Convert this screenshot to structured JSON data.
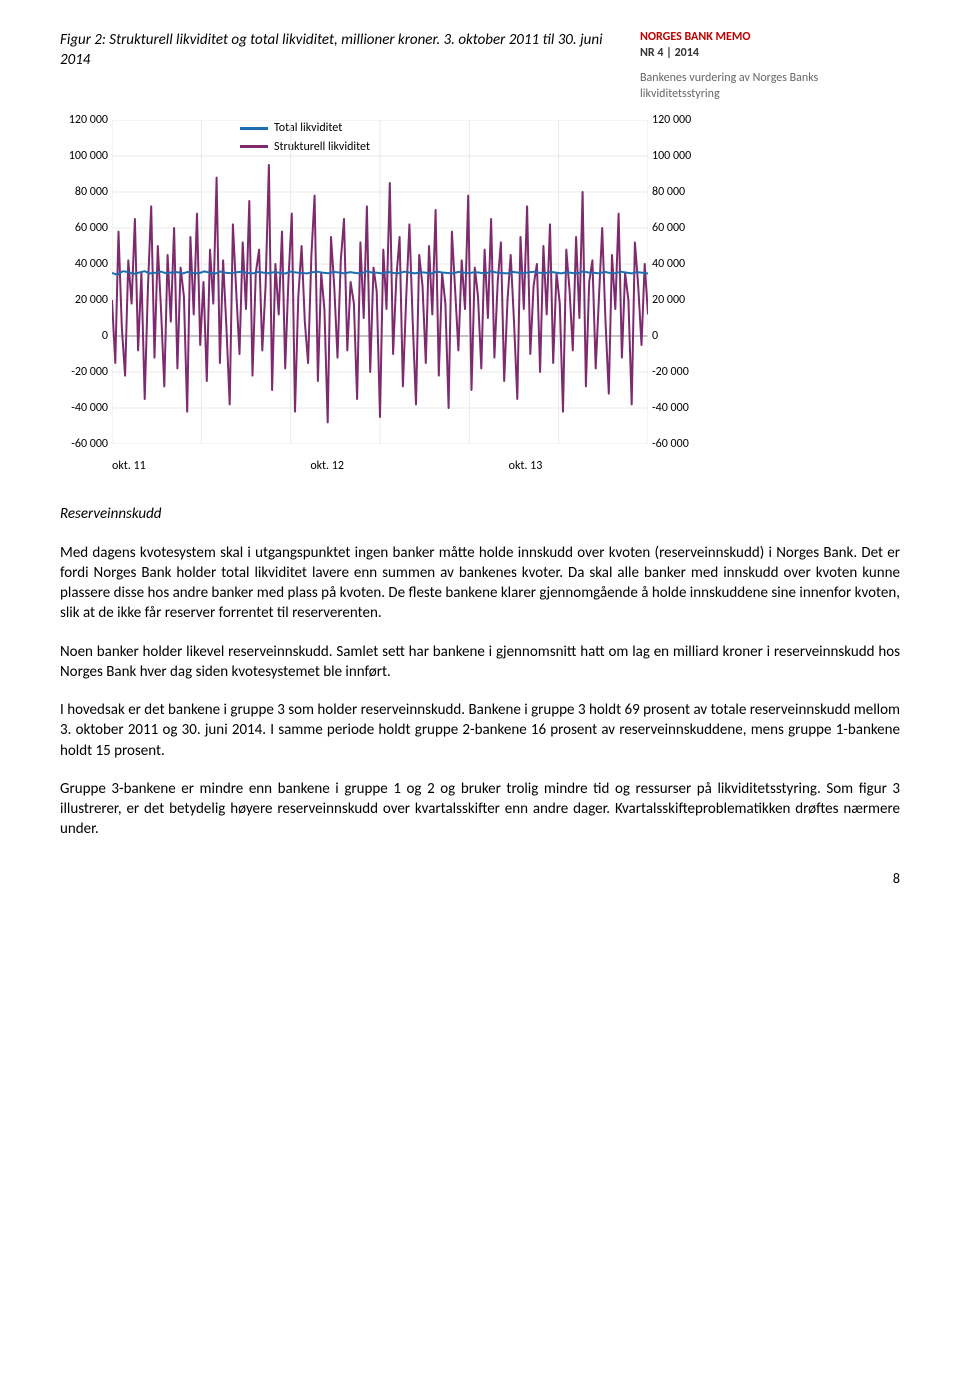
{
  "caption": "Figur 2: Strukturell likviditet og total likviditet, millioner kroner. 3. oktober 2011 til 30. juni 2014",
  "memo": {
    "title": "NORGES BANK MEMO",
    "issue": "NR 4 | 2014",
    "desc": "Bankenes vurdering av Norges Banks likviditetsstyring"
  },
  "chart": {
    "type": "line",
    "background_color": "#ffffff",
    "grid_color": "#e9e9e9",
    "ylim": [
      -60000,
      120000
    ],
    "yticks": [
      120000,
      100000,
      80000,
      60000,
      40000,
      20000,
      0,
      -20000,
      -40000,
      -60000
    ],
    "ytick_labels": [
      "120 000",
      "100 000",
      "80 000",
      "60 000",
      "40 000",
      "20 000",
      "0",
      "-20 000",
      "-40 000",
      "-60 000"
    ],
    "xtick_labels": [
      "okt. 11",
      "okt. 12",
      "okt. 13"
    ],
    "legend": [
      {
        "label": "Total likviditet",
        "color": "#1f6fb0"
      },
      {
        "label": "Strukturell likviditet",
        "color": "#7d2a6f"
      }
    ],
    "series_total": {
      "color": "#1f6fb0",
      "width": 2,
      "points": [
        35000,
        34000,
        36000,
        35500,
        34500,
        35200,
        36000,
        34800,
        35100,
        35800,
        34900,
        35300,
        35500,
        34700,
        35600,
        35000,
        34800,
        35900,
        35200,
        34600,
        35800,
        35100,
        34900,
        35400,
        35700,
        35000,
        34800,
        35600,
        35200,
        34900,
        35500,
        35100,
        34700,
        35800,
        35300,
        35000,
        34800,
        35400,
        35700,
        35100,
        34900,
        35600,
        35200,
        34800,
        35500,
        35000,
        34700,
        35900,
        35300,
        35100,
        34800,
        35600,
        35000,
        34900,
        35700,
        35200,
        34800,
        35500,
        35100,
        34700,
        35800,
        35300,
        35000,
        34800,
        35600,
        35200,
        34900,
        35500,
        35100,
        34700,
        35900,
        35300,
        35000,
        34800,
        35600,
        35200,
        34900,
        35400,
        35700,
        35100,
        34900,
        35600,
        35200,
        34800,
        35500,
        35000,
        34700,
        35900,
        35300,
        35100,
        34800,
        35600,
        35000,
        34900,
        35700,
        35200,
        34800,
        35500,
        35100,
        34700
      ]
    },
    "series_struct": {
      "color": "#7d2a6f",
      "width": 2,
      "points": [
        20000,
        -15000,
        58000,
        5000,
        -22000,
        42000,
        18000,
        65000,
        -8000,
        35000,
        -35000,
        28000,
        72000,
        -12000,
        50000,
        15000,
        -28000,
        45000,
        8000,
        60000,
        -18000,
        38000,
        22000,
        -42000,
        55000,
        12000,
        68000,
        -5000,
        30000,
        -25000,
        48000,
        18000,
        88000,
        -15000,
        42000,
        5000,
        -38000,
        62000,
        25000,
        -10000,
        52000,
        15000,
        75000,
        -22000,
        35000,
        48000,
        -8000,
        28000,
        95000,
        -30000,
        40000,
        12000,
        58000,
        -18000,
        32000,
        68000,
        -42000,
        22000,
        50000,
        8000,
        -15000,
        45000,
        78000,
        -25000,
        35000,
        15000,
        -48000,
        55000,
        28000,
        -12000,
        42000,
        65000,
        -8000,
        30000,
        18000,
        -35000,
        52000,
        10000,
        72000,
        -20000,
        38000,
        25000,
        -45000,
        48000,
        15000,
        85000,
        -10000,
        32000,
        55000,
        -28000,
        20000,
        62000,
        8000,
        -38000,
        45000,
        28000,
        -15000,
        50000,
        12000,
        70000,
        -22000,
        35000,
        18000,
        -40000,
        58000,
        25000,
        -8000,
        42000,
        15000,
        78000,
        -30000,
        38000,
        22000,
        -18000,
        48000,
        10000,
        65000,
        -12000,
        30000,
        52000,
        -25000,
        20000,
        45000,
        8000,
        -35000,
        55000,
        15000,
        72000,
        -10000,
        28000,
        40000,
        -20000,
        50000,
        12000,
        62000,
        -15000,
        35000,
        18000,
        -42000,
        48000,
        25000,
        -8000,
        55000,
        10000,
        80000,
        -28000,
        30000,
        42000,
        -18000,
        22000,
        60000,
        8000,
        -32000,
        45000,
        15000,
        68000,
        -12000,
        35000,
        20000,
        -38000,
        52000,
        28000,
        -5000,
        40000,
        12000
      ]
    }
  },
  "section_title": "Reserveinnskudd",
  "paragraphs": {
    "p1": "Med dagens kvotesystem skal i utgangspunktet ingen banker måtte holde innskudd over kvoten (reserveinnskudd) i Norges Bank. Det er fordi Norges Bank holder total likviditet lavere enn summen av bankenes kvoter. Da skal alle banker med innskudd over kvoten kunne plassere disse hos andre banker med plass på kvoten. De fleste bankene klarer gjennomgående å holde innskuddene sine innenfor kvoten, slik at de ikke får reserver forrentet til reserverenten.",
    "p2": "Noen banker holder likevel reserveinnskudd. Samlet sett har bankene i gjennomsnitt hatt om lag en milliard kroner i reserveinnskudd hos Norges Bank hver dag siden kvotesystemet ble innført.",
    "p3": "I hovedsak er det bankene i gruppe 3 som holder reserveinnskudd. Bankene i gruppe 3 holdt 69 prosent av totale reserveinnskudd mellom 3. oktober 2011 og 30. juni 2014. I samme periode holdt gruppe 2-bankene 16 prosent av reserveinnskuddene, mens gruppe 1-bankene holdt 15 prosent.",
    "p4": "Gruppe 3-bankene er mindre enn bankene i gruppe 1 og 2 og bruker trolig mindre tid og ressurser på likviditetsstyring. Som figur 3 illustrerer, er det betydelig høyere reserveinnskudd over kvartalsskifter enn andre dager. Kvartalsskifteproblematikken drøftes nærmere under."
  },
  "page_number": "8"
}
